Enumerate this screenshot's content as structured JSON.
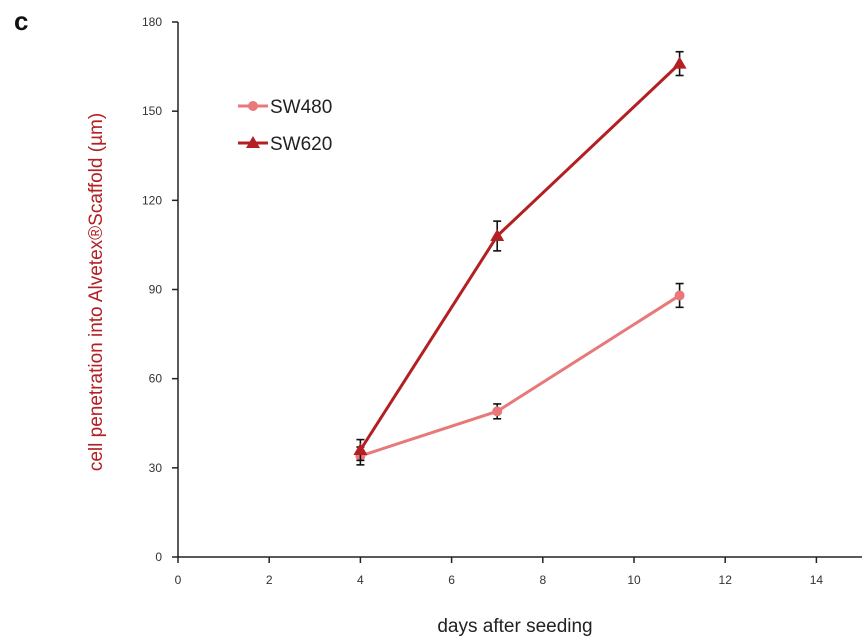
{
  "panel_label": "c",
  "colors": {
    "SW480": "#e8787a",
    "SW620": "#b31f22",
    "axis": "#222222",
    "ylabel": "#b31f22",
    "errorbar": "#111111"
  },
  "chart_data": {
    "type": "line",
    "title": "",
    "xlabel": "days after seeding",
    "ylabel": "cell penetration into Alvetex®Scaffold (µm)",
    "xlim": [
      0,
      15
    ],
    "ylim": [
      0,
      180
    ],
    "xticks": [
      0,
      2,
      4,
      6,
      8,
      10,
      12,
      14
    ],
    "yticks": [
      0,
      30,
      60,
      90,
      120,
      150,
      180
    ],
    "grid": false,
    "legend_position": "top-left",
    "series": [
      {
        "name": "SW480",
        "marker": "circle",
        "x": [
          4,
          7,
          11
        ],
        "y": [
          34,
          49,
          88
        ],
        "error": [
          3,
          2.5,
          4
        ]
      },
      {
        "name": "SW620",
        "marker": "triangle",
        "x": [
          4,
          7,
          11
        ],
        "y": [
          36,
          108,
          166
        ],
        "error": [
          3.5,
          5,
          4
        ]
      }
    ]
  }
}
